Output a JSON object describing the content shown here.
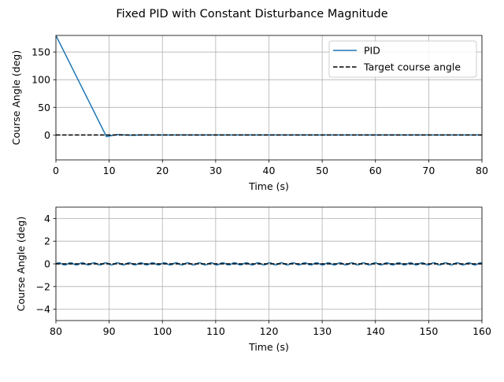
{
  "figure": {
    "title": "Fixed PID with Constant Disturbance Magnitude"
  },
  "chart_data": [
    {
      "type": "line",
      "xlabel": "Time (s)",
      "ylabel": "Course Angle (deg)",
      "xlim": [
        0,
        80
      ],
      "ylim": [
        -45,
        180
      ],
      "xticks": [
        "0",
        "10",
        "20",
        "30",
        "40",
        "50",
        "60",
        "70",
        "80"
      ],
      "yticks": [
        "0",
        "50",
        "100",
        "150"
      ],
      "grid": true,
      "legend_position": "upper right",
      "series": [
        {
          "name": "PID",
          "color": "#1f77b4",
          "style": "solid",
          "points": [
            [
              0,
              180
            ],
            [
              9.5,
              -3
            ],
            [
              10.5,
              -1
            ],
            [
              11.5,
              1
            ],
            [
              13,
              0
            ],
            [
              14.5,
              -0.5
            ],
            [
              16,
              0.3
            ],
            [
              18,
              0
            ],
            [
              80,
              0
            ]
          ]
        },
        {
          "name": "Target course angle",
          "color": "#000000",
          "style": "dashed",
          "points": [
            [
              0,
              0
            ],
            [
              80,
              0
            ]
          ]
        }
      ]
    },
    {
      "type": "line",
      "xlabel": "Time (s)",
      "ylabel": "Course Angle (deg)",
      "xlim": [
        80,
        160
      ],
      "ylim": [
        -5,
        5
      ],
      "xticks": [
        "80",
        "90",
        "100",
        "110",
        "120",
        "130",
        "140",
        "150",
        "160"
      ],
      "yticks": [
        "−4",
        "−2",
        "0",
        "2",
        "4"
      ],
      "grid": true,
      "series": [
        {
          "name": "PID",
          "color": "#1f77b4",
          "style": "solid",
          "oscillation": {
            "amplitude": 0.1,
            "period": 2.2,
            "offset": 0
          }
        },
        {
          "name": "Target course angle",
          "color": "#000000",
          "style": "dashed",
          "points": [
            [
              80,
              0
            ],
            [
              160,
              0
            ]
          ]
        }
      ]
    }
  ]
}
